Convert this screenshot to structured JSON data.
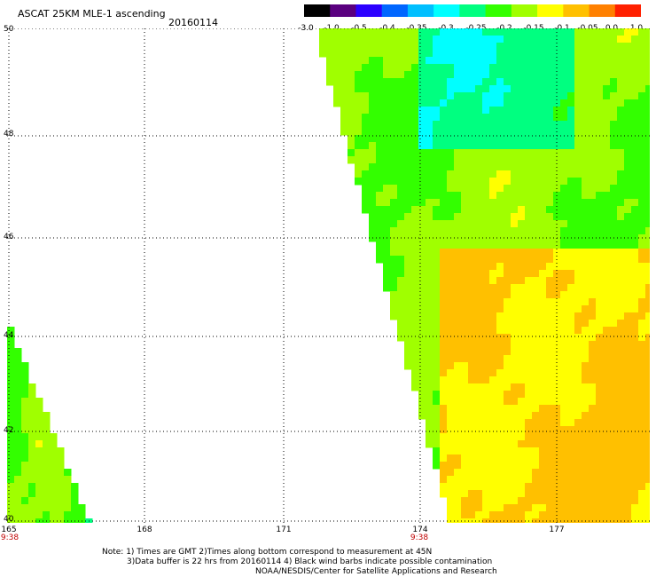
{
  "header": {
    "title": "ASCAT 25KM MLE-1 ascending",
    "date": "20160114"
  },
  "colorbar": {
    "labels": [
      "-3.0",
      "-1.0",
      "-0.5",
      "-0.4",
      "-0.35",
      "-0.3",
      "-0.25",
      "-0.2",
      "-0.15",
      "-0.1",
      "-0.05",
      "0.0",
      "1.0"
    ],
    "colors": [
      "#000000",
      "#5a007f",
      "#2b00ff",
      "#0066ff",
      "#00bfff",
      "#00ffff",
      "#00ff80",
      "#33ff00",
      "#a0ff00",
      "#ffff00",
      "#ffc000",
      "#ff8000",
      "#ff2000"
    ]
  },
  "axes": {
    "lat_labels": [
      "50",
      "48",
      "46",
      "44",
      "42",
      "40"
    ],
    "lon_labels": [
      "165",
      "168",
      "171",
      "174",
      "177"
    ],
    "time_labels": [
      "9:38",
      "9:38"
    ]
  },
  "footer": {
    "note1": "Note: 1) Times are GMT 2)Times along bottom correspond to measurement at 45N",
    "note2": "3)Data buffer is 22 hrs from 20160114 4) Black wind barbs indicate possible contamination",
    "credit": "NOAA/NESDIS/Center for Satellite Applications and Research"
  }
}
